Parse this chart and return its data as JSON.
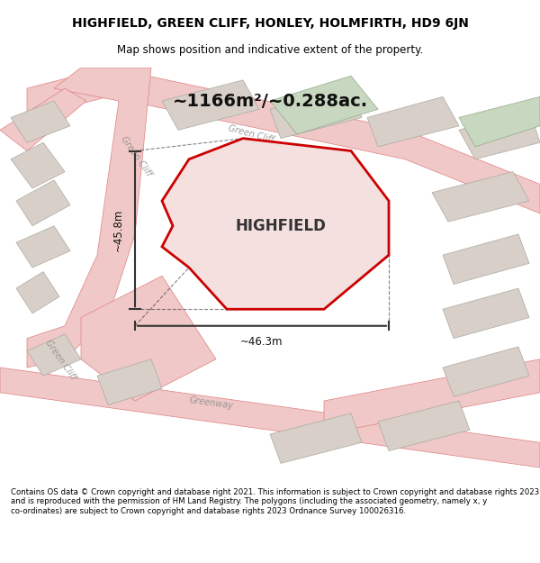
{
  "title_line1": "HIGHFIELD, GREEN CLIFF, HONLEY, HOLMFIRTH, HD9 6JN",
  "title_line2": "Map shows position and indicative extent of the property.",
  "area_label": "~1166m²/~0.288ac.",
  "property_label": "HIGHFIELD",
  "dim1_label": "~45.8m",
  "dim2_label": "~46.3m",
  "footer": "Contains OS data © Crown copyright and database right 2021. This information is subject to Crown copyright and database rights 2023 and is reproduced with the permission of HM Land Registry. The polygons (including the associated geometry, namely x, y co-ordinates) are subject to Crown copyright and database rights 2023 Ordnance Survey 100026316.",
  "bg_color": "#f5f0eb",
  "map_bg": "#f5f0eb",
  "road_color": "#f0c8c8",
  "road_line_color": "#e08080",
  "building_color": "#d8d0c8",
  "green_color": "#c8d8c0",
  "property_fill": "#f5e0e0",
  "property_edge": "#cc0000",
  "dim_line_color": "#333333",
  "label_color": "#888888",
  "street_label_color": "#888888"
}
